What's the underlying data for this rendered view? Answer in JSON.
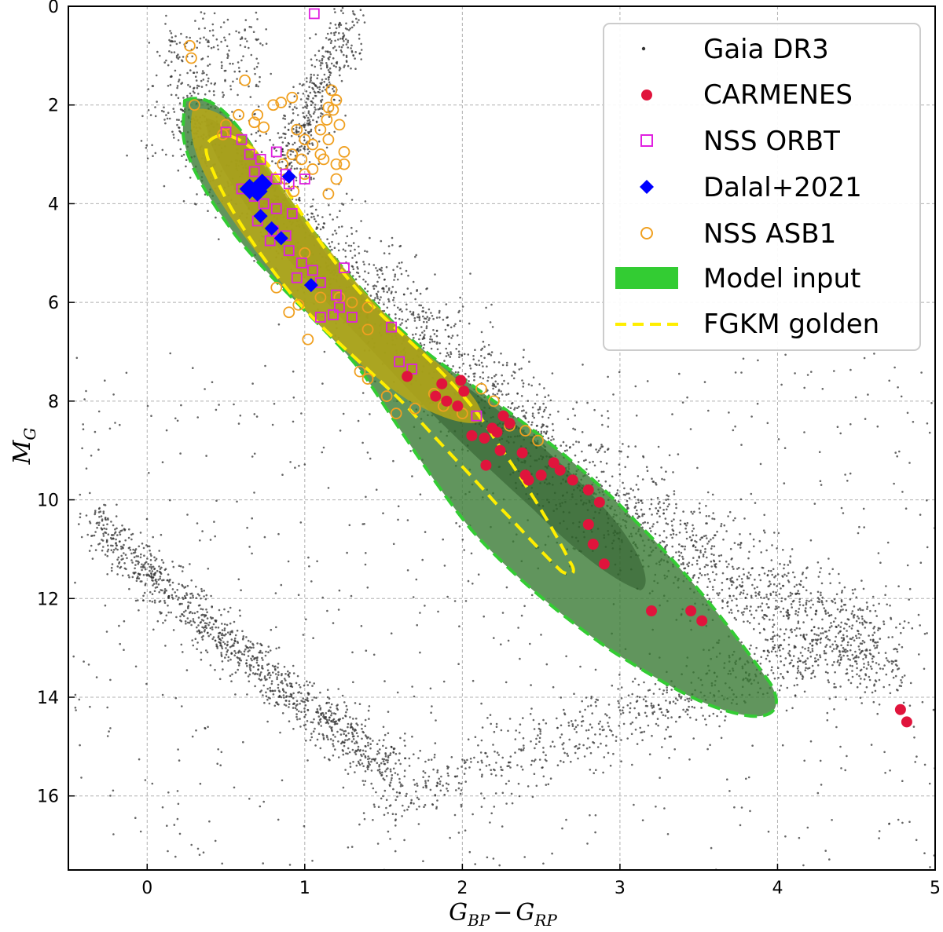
{
  "chart_data": {
    "type": "scatter",
    "title": "",
    "xlabel": "G_BP − G_RP",
    "xlabel_parts": {
      "g1": "G",
      "s1": "BP",
      "minus": "−",
      "g2": "G",
      "s2": "RP"
    },
    "ylabel": "M_G",
    "ylabel_parts": {
      "m": "M",
      "s": "G"
    },
    "xlim": [
      -0.5,
      5.0
    ],
    "ylim": [
      17.5,
      0
    ],
    "y_inverted": true,
    "grid": true,
    "x_ticks": [
      0,
      1,
      2,
      3,
      4,
      5
    ],
    "y_ticks": [
      0,
      2,
      4,
      6,
      8,
      10,
      12,
      14,
      16
    ],
    "legend_position": "top-right",
    "legend": [
      {
        "key": "gaia",
        "label": "Gaia DR3",
        "marker": "dot",
        "color": "#333333"
      },
      {
        "key": "carmenes",
        "label": "CARMENES",
        "marker": "filled-circle",
        "color": "#e0143c"
      },
      {
        "key": "nss_orbt",
        "label": "NSS ORBT",
        "marker": "open-square",
        "color": "#e020e0"
      },
      {
        "key": "dalal",
        "label": "Dalal+2021",
        "marker": "filled-diamond",
        "color": "#0000ff"
      },
      {
        "key": "nss_asb1",
        "label": "NSS ASB1",
        "marker": "open-circle",
        "color": "#f0a020"
      },
      {
        "key": "model",
        "label": "Model input",
        "marker": "patch",
        "color": "#33cc33"
      },
      {
        "key": "fgkm",
        "label": "FGKM golden",
        "marker": "dashed-line",
        "color": "#ffee00"
      }
    ],
    "series": [
      {
        "name": "CARMENES",
        "color": "#e0143c",
        "points": [
          [
            1.65,
            7.5
          ],
          [
            1.83,
            7.9
          ],
          [
            1.87,
            7.65
          ],
          [
            1.9,
            8.0
          ],
          [
            1.97,
            8.1
          ],
          [
            1.99,
            7.58
          ],
          [
            2.01,
            7.8
          ],
          [
            2.06,
            8.7
          ],
          [
            2.14,
            8.75
          ],
          [
            2.19,
            8.55
          ],
          [
            2.22,
            8.63
          ],
          [
            2.26,
            8.3
          ],
          [
            2.3,
            8.45
          ],
          [
            2.24,
            9.0
          ],
          [
            2.15,
            9.3
          ],
          [
            2.4,
            9.5
          ],
          [
            2.42,
            9.6
          ],
          [
            2.38,
            9.05
          ],
          [
            2.5,
            9.5
          ],
          [
            2.58,
            9.25
          ],
          [
            2.62,
            9.4
          ],
          [
            2.7,
            9.6
          ],
          [
            2.8,
            9.8
          ],
          [
            2.87,
            10.05
          ],
          [
            2.8,
            10.5
          ],
          [
            2.83,
            10.9
          ],
          [
            2.9,
            11.3
          ],
          [
            3.2,
            12.25
          ],
          [
            3.45,
            12.25
          ],
          [
            3.52,
            12.45
          ],
          [
            4.78,
            14.25
          ],
          [
            4.82,
            14.5
          ]
        ]
      },
      {
        "name": "NSS ORBT",
        "color": "#e020e0",
        "points": [
          [
            1.06,
            0.15
          ],
          [
            0.5,
            2.55
          ],
          [
            0.6,
            2.7
          ],
          [
            0.65,
            3.0
          ],
          [
            0.72,
            3.1
          ],
          [
            0.82,
            2.95
          ],
          [
            0.88,
            3.4
          ],
          [
            0.68,
            3.35
          ],
          [
            0.75,
            3.55
          ],
          [
            0.82,
            3.5
          ],
          [
            0.9,
            3.6
          ],
          [
            0.6,
            3.7
          ],
          [
            0.68,
            3.85
          ],
          [
            0.74,
            4.0
          ],
          [
            0.82,
            4.1
          ],
          [
            0.7,
            4.35
          ],
          [
            0.8,
            4.55
          ],
          [
            0.88,
            4.65
          ],
          [
            0.78,
            4.75
          ],
          [
            0.9,
            4.95
          ],
          [
            0.98,
            5.2
          ],
          [
            1.05,
            5.35
          ],
          [
            0.95,
            5.5
          ],
          [
            1.1,
            5.6
          ],
          [
            1.2,
            5.85
          ],
          [
            1.22,
            6.1
          ],
          [
            1.18,
            6.25
          ],
          [
            1.3,
            6.3
          ],
          [
            1.1,
            6.3
          ],
          [
            1.25,
            5.3
          ],
          [
            1.0,
            3.5
          ],
          [
            1.55,
            6.5
          ],
          [
            1.6,
            7.2
          ],
          [
            1.68,
            7.35
          ],
          [
            2.09,
            8.3
          ],
          [
            0.92,
            4.2
          ]
        ]
      },
      {
        "name": "Dalal+2021",
        "color": "#0000ff",
        "points": [
          [
            0.65,
            3.7
          ],
          [
            0.7,
            3.75
          ],
          [
            0.73,
            3.6
          ],
          [
            0.72,
            4.25
          ],
          [
            0.79,
            4.5
          ],
          [
            0.85,
            4.7
          ],
          [
            0.9,
            3.45
          ],
          [
            1.04,
            5.65
          ]
        ]
      },
      {
        "name": "NSS ASB1",
        "color": "#f0a020",
        "points": [
          [
            0.27,
            0.8
          ],
          [
            0.28,
            1.05
          ],
          [
            0.3,
            2.0
          ],
          [
            0.48,
            2.6
          ],
          [
            0.5,
            2.4
          ],
          [
            0.58,
            2.2
          ],
          [
            0.62,
            1.5
          ],
          [
            0.68,
            2.35
          ],
          [
            0.74,
            2.45
          ],
          [
            0.8,
            2.0
          ],
          [
            0.85,
            1.95
          ],
          [
            0.92,
            1.85
          ],
          [
            0.95,
            2.5
          ],
          [
            1.0,
            2.7
          ],
          [
            1.05,
            2.8
          ],
          [
            1.1,
            2.5
          ],
          [
            1.14,
            2.3
          ],
          [
            1.18,
            2.1
          ],
          [
            1.2,
            1.9
          ],
          [
            1.22,
            2.4
          ],
          [
            1.17,
            1.7
          ],
          [
            1.15,
            2.7
          ],
          [
            1.1,
            3.0
          ],
          [
            1.05,
            3.3
          ],
          [
            0.98,
            3.1
          ],
          [
            0.92,
            3.0
          ],
          [
            0.86,
            3.2
          ],
          [
            1.12,
            3.1
          ],
          [
            1.2,
            3.2
          ],
          [
            1.25,
            2.95
          ],
          [
            1.2,
            3.5
          ],
          [
            1.22,
            5.9
          ],
          [
            1.3,
            6.0
          ],
          [
            1.4,
            6.1
          ],
          [
            1.35,
            7.4
          ],
          [
            1.4,
            7.55
          ],
          [
            1.52,
            7.9
          ],
          [
            1.58,
            8.25
          ],
          [
            1.7,
            8.15
          ],
          [
            1.82,
            7.85
          ],
          [
            1.88,
            8.1
          ],
          [
            2.0,
            8.25
          ],
          [
            2.12,
            7.75
          ],
          [
            2.2,
            8.0
          ],
          [
            2.3,
            8.5
          ],
          [
            2.4,
            8.6
          ],
          [
            2.48,
            8.8
          ],
          [
            1.0,
            3.4
          ],
          [
            0.7,
            2.2
          ],
          [
            1.15,
            2.05
          ],
          [
            0.88,
            3.5
          ],
          [
            0.93,
            3.75
          ],
          [
            1.02,
            6.75
          ],
          [
            1.4,
            6.55
          ],
          [
            1.0,
            5.0
          ],
          [
            1.1,
            5.9
          ],
          [
            0.82,
            5.7
          ],
          [
            0.9,
            6.2
          ],
          [
            0.96,
            6.05
          ],
          [
            1.25,
            3.2
          ],
          [
            1.15,
            3.8
          ]
        ]
      }
    ],
    "model_input_region": "green shaded band (contour) along main sequence from (0.25, 2.1) to (3.95, 14.3)",
    "fgkm_golden_region": "yellow dashed contour from (0.4, 2.6) to (2.65, 11.4)"
  }
}
